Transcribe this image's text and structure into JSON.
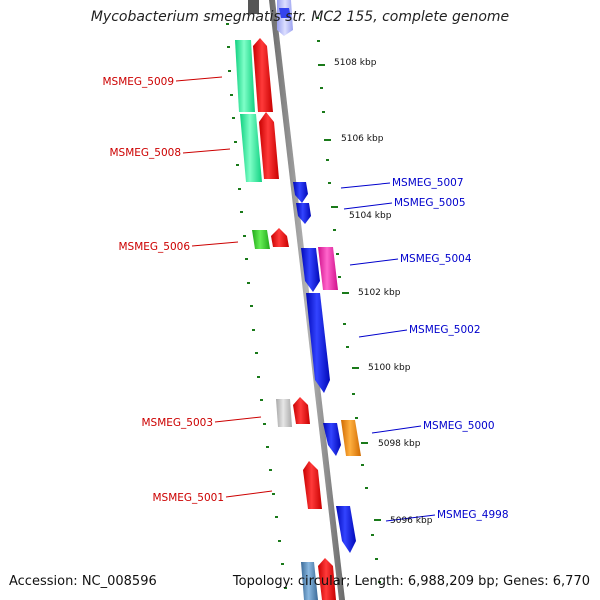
{
  "title": "Mycobacterium smegmatis str. MC2 155, complete genome",
  "accession": "Accession: NC_008596",
  "summary": "Topology: circular; Length: 6,988,209 bp; Genes: 6,770",
  "kbp_labels": [
    "5108 kbp",
    "5106 kbp",
    "5104 kbp",
    "5102 kbp",
    "5100 kbp",
    "5098 kbp",
    "5096 kbp"
  ],
  "genes_left": [
    "MSMEG_5009",
    "MSMEG_5008",
    "MSMEG_5006",
    "MSMEG_5003",
    "MSMEG_5001"
  ],
  "genes_right": [
    "MSMEG_5007",
    "MSMEG_5005",
    "MSMEG_5004",
    "MSMEG_5002",
    "MSMEG_5000",
    "MSMEG_4998"
  ],
  "colors": {
    "left_label": "#cc0000",
    "right_label": "#0000cc",
    "backbone": "#8a8a8a",
    "tick": "#1a7a1a",
    "feature_blue": "#0a14e6",
    "feature_red": "#ee1010",
    "feature_aqua": "#22ee99",
    "feature_magenta": "#ee22aa",
    "feature_orange": "#f38a00",
    "feature_green": "#33cc22",
    "feature_grey": "#c8c8c8",
    "feature_steel": "#5a8ab8"
  }
}
